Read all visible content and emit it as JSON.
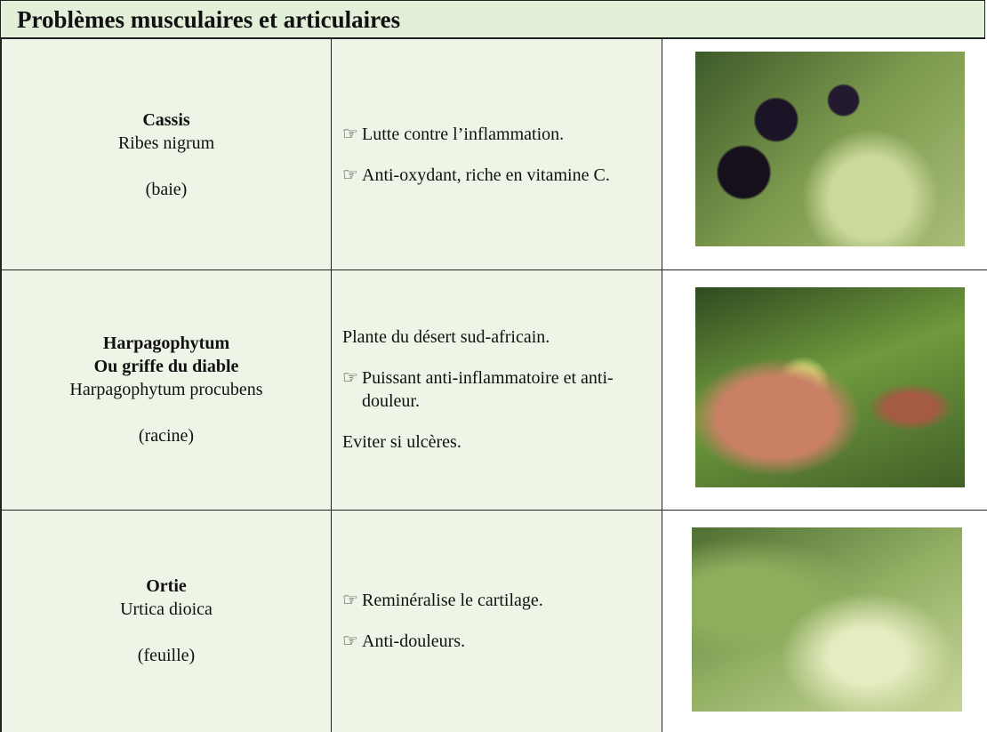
{
  "header": {
    "title": "Problèmes musculaires et articulaires"
  },
  "table": {
    "rows": [
      {
        "name": [
          "Cassis"
        ],
        "latin": "Ribes nigrum",
        "part": "(baie)",
        "notes": [
          {
            "marker": "☞",
            "text": "Lutte contre l’inflammation."
          },
          {
            "marker": "☞",
            "text": "Anti-oxydant, riche en vitamine C."
          }
        ]
      },
      {
        "name": [
          "Harpagophytum",
          "Ou griffe du diable"
        ],
        "latin": "Harpagophytum procubens",
        "part": "(racine)",
        "notes": [
          {
            "text": "Plante du désert sud-africain."
          },
          {
            "marker": "☞",
            "text": "Puissant anti-inflammatoire et anti-douleur."
          },
          {
            "text": "Eviter si ulcères."
          }
        ]
      },
      {
        "name": [
          "Ortie"
        ],
        "latin": "Urtica dioica",
        "part": "(feuille)",
        "notes": [
          {
            "marker": "☞",
            "text": "Reminéralise le cartilage."
          },
          {
            "marker": "☞",
            "text": "Anti-douleurs."
          }
        ]
      }
    ]
  }
}
